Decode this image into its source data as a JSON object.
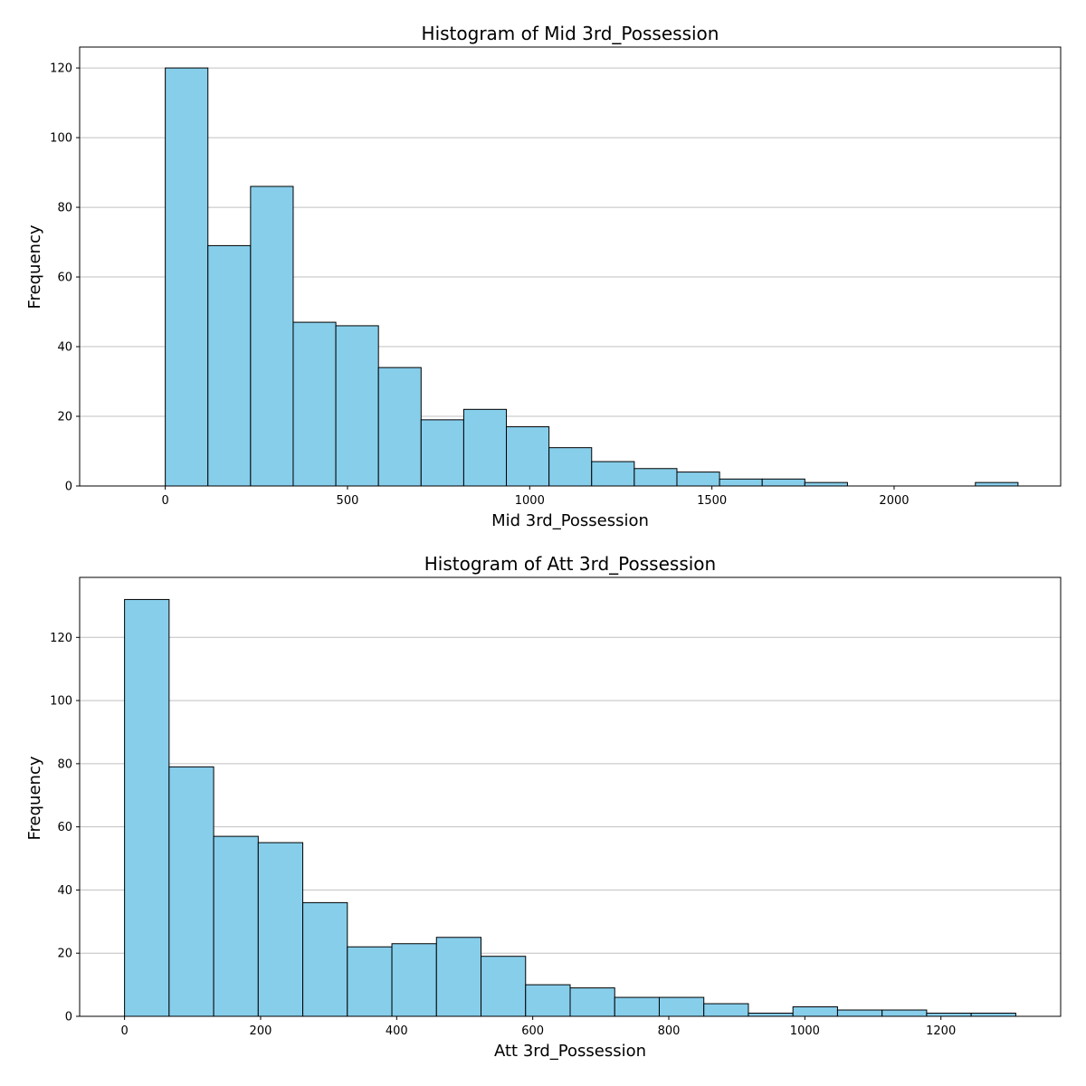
{
  "colors": {
    "bar_fill": "#87CEEB",
    "bar_edge": "#000000",
    "grid": "#c0c0c0",
    "background": "#ffffff"
  },
  "chart_data": [
    {
      "type": "bar",
      "title": "Histogram of Mid 3rd_Possession",
      "xlabel": "Mid 3rd_Possession",
      "ylabel": "Frequency",
      "bin_edges": [
        0,
        117,
        234,
        351,
        468,
        585,
        702,
        819,
        936,
        1053,
        1170,
        1287,
        1404,
        1521,
        1638,
        1755,
        1872,
        1989,
        2106,
        2223,
        2340
      ],
      "values": [
        120,
        69,
        86,
        47,
        46,
        34,
        19,
        22,
        17,
        11,
        7,
        5,
        4,
        2,
        2,
        1,
        0,
        0,
        0,
        1
      ],
      "xlim": [
        -235,
        2457
      ],
      "ylim": [
        0,
        126
      ],
      "xticks": [
        0,
        500,
        1000,
        1500,
        2000
      ],
      "yticks": [
        0,
        20,
        40,
        60,
        80,
        100,
        120
      ],
      "grid": "y-axis"
    },
    {
      "type": "bar",
      "title": "Histogram of Att 3rd_Possession",
      "xlabel": "Att 3rd_Possession",
      "ylabel": "Frequency",
      "bin_edges": [
        0,
        65.5,
        131,
        196.5,
        262,
        327.5,
        393,
        458.5,
        524,
        589.5,
        655,
        720.5,
        786,
        851.5,
        917,
        982.5,
        1048,
        1113.5,
        1179,
        1244.5,
        1310
      ],
      "values": [
        132,
        79,
        57,
        55,
        36,
        22,
        23,
        25,
        19,
        10,
        9,
        6,
        6,
        4,
        1,
        3,
        2,
        2,
        1,
        1
      ],
      "xlim": [
        -66,
        1376
      ],
      "ylim": [
        0,
        139
      ],
      "xticks": [
        0,
        200,
        400,
        600,
        800,
        1000,
        1200
      ],
      "yticks": [
        0,
        20,
        40,
        60,
        80,
        100,
        120
      ],
      "grid": "y-axis"
    }
  ]
}
